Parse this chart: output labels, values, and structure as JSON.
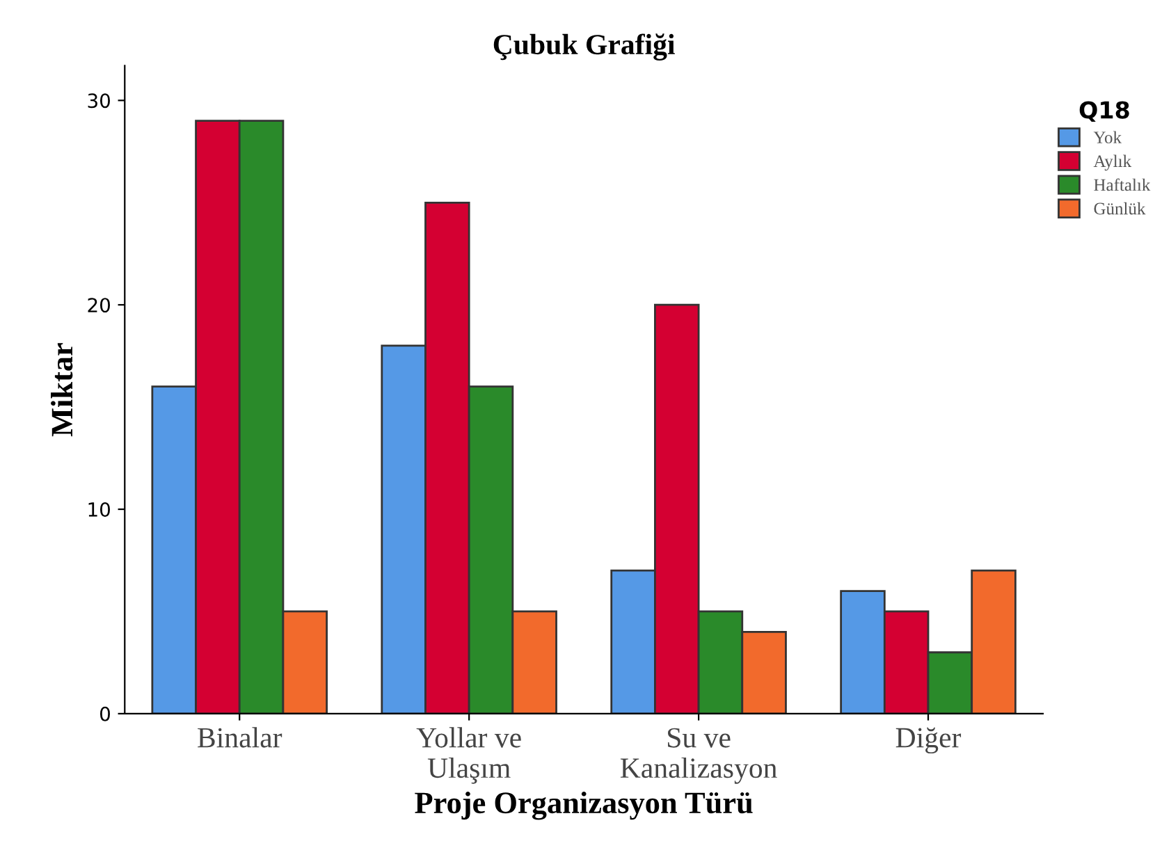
{
  "chart_data": {
    "type": "bar",
    "title": "Çubuk Grafiği",
    "xlabel": "Proje Organizasyon Türü",
    "ylabel": "Miktar",
    "legend_title": "Q18",
    "categories": [
      "Binalar",
      "Yollar ve\nUlaşım",
      "Su ve\nKanalizasyon",
      "Diğer"
    ],
    "series": [
      {
        "name": "Yok",
        "color": "#5599e6",
        "values": [
          16,
          18,
          7,
          6
        ]
      },
      {
        "name": "Aylık",
        "color": "#d40032",
        "values": [
          29,
          25,
          20,
          5
        ]
      },
      {
        "name": "Haftalık",
        "color": "#2a8a2a",
        "values": [
          29,
          16,
          5,
          3
        ]
      },
      {
        "name": "Günlük",
        "color": "#f26a2c",
        "values": [
          5,
          5,
          4,
          7
        ]
      }
    ],
    "ylim": [
      0,
      31.7
    ],
    "yticks": [
      0,
      10,
      20,
      30
    ],
    "grid": false,
    "legend": "right"
  }
}
